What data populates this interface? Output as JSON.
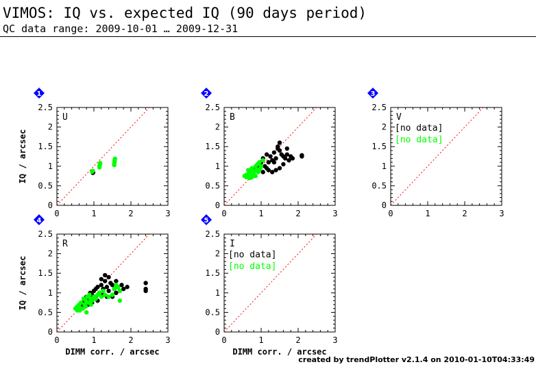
{
  "header": {
    "title": "VIMOS: IQ vs. expected IQ (90 days period)",
    "subtitle": "QC data range: 2009-10-01 … 2009-12-31"
  },
  "footer": {
    "credit": "created by trendPlotter v2.1.4 on 2010-01-10T04:33:49"
  },
  "colors": {
    "series_a": "#000000",
    "series_b": "#00ff00",
    "reference_line": "#ff0000",
    "badge": "#0000ff"
  },
  "chart_data": [
    {
      "type": "scatter",
      "panel": "1",
      "label": "U",
      "xlabel": "",
      "ylabel": "IQ / arcsec",
      "xlim": [
        0,
        3
      ],
      "ylim": [
        0,
        2.5
      ],
      "xticks": [
        0,
        1,
        2,
        3
      ],
      "yticks": [
        0,
        0.5,
        1,
        1.5,
        2,
        2.5
      ],
      "reference_line": "y = x (dotted)",
      "series": [
        {
          "color": "black",
          "points": [
            [
              0.97,
              0.83
            ],
            [
              0.97,
              0.86
            ],
            [
              0.98,
              0.84
            ]
          ]
        },
        {
          "color": "green",
          "points": [
            [
              0.95,
              0.86
            ],
            [
              0.97,
              0.88
            ],
            [
              1.15,
              0.97
            ],
            [
              1.15,
              1.01
            ],
            [
              1.16,
              1.04
            ],
            [
              1.17,
              1.08
            ],
            [
              1.55,
              1.03
            ],
            [
              1.55,
              1.07
            ],
            [
              1.56,
              1.11
            ],
            [
              1.56,
              1.15
            ],
            [
              1.57,
              1.19
            ]
          ]
        }
      ]
    },
    {
      "type": "scatter",
      "panel": "2",
      "label": "B",
      "xlabel": "",
      "ylabel": "",
      "xlim": [
        0,
        3
      ],
      "ylim": [
        0,
        2.5
      ],
      "xticks": [
        0,
        1,
        2,
        3
      ],
      "yticks": [
        0,
        0.5,
        1,
        1.5,
        2,
        2.5
      ],
      "reference_line": "y = x (dotted)",
      "series": [
        {
          "color": "black",
          "points": [
            [
              0.85,
              0.95
            ],
            [
              0.9,
              1.0
            ],
            [
              0.95,
              1.05
            ],
            [
              1.0,
              1.1
            ],
            [
              1.05,
              1.2
            ],
            [
              1.1,
              1.0
            ],
            [
              1.15,
              1.3
            ],
            [
              1.2,
              1.1
            ],
            [
              1.25,
              1.25
            ],
            [
              1.3,
              1.15
            ],
            [
              1.35,
              1.35
            ],
            [
              1.4,
              1.2
            ],
            [
              1.45,
              1.5
            ],
            [
              1.5,
              1.6
            ],
            [
              1.55,
              1.3
            ],
            [
              1.6,
              1.25
            ],
            [
              1.65,
              1.2
            ],
            [
              1.7,
              1.3
            ],
            [
              1.75,
              1.15
            ],
            [
              1.8,
              1.25
            ],
            [
              1.85,
              1.2
            ],
            [
              1.4,
              0.9
            ],
            [
              1.5,
              0.95
            ],
            [
              1.3,
              0.85
            ],
            [
              1.6,
              1.05
            ],
            [
              1.2,
              0.9
            ],
            [
              2.1,
              1.25
            ],
            [
              2.1,
              1.28
            ],
            [
              1.45,
              1.45
            ],
            [
              1.35,
              1.1
            ],
            [
              1.05,
              0.85
            ],
            [
              1.15,
              0.95
            ],
            [
              1.7,
              1.45
            ],
            [
              1.5,
              1.4
            ]
          ]
        },
        {
          "color": "green",
          "points": [
            [
              0.55,
              0.75
            ],
            [
              0.6,
              0.78
            ],
            [
              0.62,
              0.72
            ],
            [
              0.65,
              0.8
            ],
            [
              0.68,
              0.85
            ],
            [
              0.7,
              0.75
            ],
            [
              0.72,
              0.9
            ],
            [
              0.75,
              0.95
            ],
            [
              0.78,
              0.82
            ],
            [
              0.8,
              0.8
            ],
            [
              0.82,
              0.88
            ],
            [
              0.85,
              1.0
            ],
            [
              0.88,
              0.92
            ],
            [
              0.9,
              1.05
            ],
            [
              0.92,
              0.85
            ],
            [
              0.95,
              1.1
            ],
            [
              0.98,
              0.95
            ],
            [
              1.0,
              1.0
            ],
            [
              0.7,
              0.7
            ],
            [
              0.75,
              0.72
            ],
            [
              0.65,
              0.9
            ],
            [
              0.85,
              0.75
            ],
            [
              0.6,
              0.72
            ],
            [
              1.05,
              1.15
            ],
            [
              0.95,
              0.9
            ]
          ]
        }
      ]
    },
    {
      "type": "scatter",
      "panel": "3",
      "label": "V",
      "xlabel": "",
      "ylabel": "",
      "xlim": [
        0,
        3
      ],
      "ylim": [
        0,
        2.5
      ],
      "xticks": [
        0,
        1,
        2,
        3
      ],
      "yticks": [
        0,
        0.5,
        1,
        1.5,
        2,
        2.5
      ],
      "reference_line": "y = x (dotted)",
      "no_data": [
        "[no data]",
        "[no data]"
      ],
      "series": []
    },
    {
      "type": "scatter",
      "panel": "4",
      "label": "R",
      "xlabel": "DIMM corr. / arcsec",
      "ylabel": "IQ / arcsec",
      "xlim": [
        0,
        3
      ],
      "ylim": [
        0,
        2.5
      ],
      "xticks": [
        0,
        1,
        2,
        3
      ],
      "yticks": [
        0,
        0.5,
        1,
        1.5,
        2,
        2.5
      ],
      "reference_line": "y = x (dotted)",
      "series": [
        {
          "color": "black",
          "points": [
            [
              0.7,
              0.7
            ],
            [
              0.75,
              0.8
            ],
            [
              0.8,
              0.9
            ],
            [
              0.85,
              0.85
            ],
            [
              0.9,
              1.0
            ],
            [
              0.95,
              0.95
            ],
            [
              1.0,
              1.05
            ],
            [
              1.05,
              0.9
            ],
            [
              1.1,
              1.15
            ],
            [
              1.15,
              1.0
            ],
            [
              1.2,
              1.2
            ],
            [
              1.25,
              1.1
            ],
            [
              1.3,
              1.3
            ],
            [
              1.35,
              1.15
            ],
            [
              1.4,
              1.05
            ],
            [
              1.45,
              1.25
            ],
            [
              1.5,
              1.2
            ],
            [
              1.55,
              1.1
            ],
            [
              1.6,
              1.0
            ],
            [
              1.65,
              1.15
            ],
            [
              1.7,
              1.05
            ],
            [
              1.75,
              1.2
            ],
            [
              1.3,
              1.45
            ],
            [
              1.4,
              1.4
            ],
            [
              1.2,
              1.35
            ],
            [
              1.1,
              0.8
            ],
            [
              0.95,
              0.75
            ],
            [
              1.25,
              0.95
            ],
            [
              1.5,
              0.9
            ],
            [
              1.8,
              1.1
            ],
            [
              1.9,
              1.15
            ],
            [
              2.4,
              1.05
            ],
            [
              2.4,
              1.1
            ],
            [
              2.4,
              1.25
            ],
            [
              1.0,
              0.85
            ],
            [
              0.85,
              0.7
            ],
            [
              1.05,
              1.1
            ],
            [
              1.35,
              0.9
            ],
            [
              1.6,
              1.3
            ]
          ]
        },
        {
          "color": "green",
          "points": [
            [
              0.5,
              0.6
            ],
            [
              0.55,
              0.65
            ],
            [
              0.6,
              0.7
            ],
            [
              0.62,
              0.55
            ],
            [
              0.65,
              0.75
            ],
            [
              0.7,
              0.6
            ],
            [
              0.72,
              0.85
            ],
            [
              0.75,
              0.7
            ],
            [
              0.78,
              0.8
            ],
            [
              0.8,
              0.5
            ],
            [
              0.82,
              0.9
            ],
            [
              0.85,
              0.75
            ],
            [
              0.88,
              0.95
            ],
            [
              0.9,
              0.85
            ],
            [
              0.92,
              0.7
            ],
            [
              0.95,
              0.8
            ],
            [
              1.0,
              0.9
            ],
            [
              1.05,
              0.85
            ],
            [
              1.1,
              0.95
            ],
            [
              1.15,
              1.0
            ],
            [
              1.2,
              0.9
            ],
            [
              1.3,
              0.95
            ],
            [
              1.4,
              0.9
            ],
            [
              1.5,
              0.95
            ],
            [
              1.55,
              1.1
            ],
            [
              1.6,
              1.2
            ],
            [
              1.65,
              1.15
            ],
            [
              1.7,
              1.05
            ],
            [
              1.7,
              0.8
            ],
            [
              0.55,
              0.55
            ],
            [
              0.65,
              0.6
            ],
            [
              0.78,
              0.65
            ],
            [
              1.25,
              1.05
            ]
          ]
        }
      ]
    },
    {
      "type": "scatter",
      "panel": "5",
      "label": "I",
      "xlabel": "DIMM corr. / arcsec",
      "ylabel": "",
      "xlim": [
        0,
        3
      ],
      "ylim": [
        0,
        2.5
      ],
      "xticks": [
        0,
        1,
        2,
        3
      ],
      "yticks": [
        0,
        0.5,
        1,
        1.5,
        2,
        2.5
      ],
      "reference_line": "y = x (dotted)",
      "no_data": [
        "[no data]",
        "[no data]"
      ],
      "series": []
    }
  ]
}
